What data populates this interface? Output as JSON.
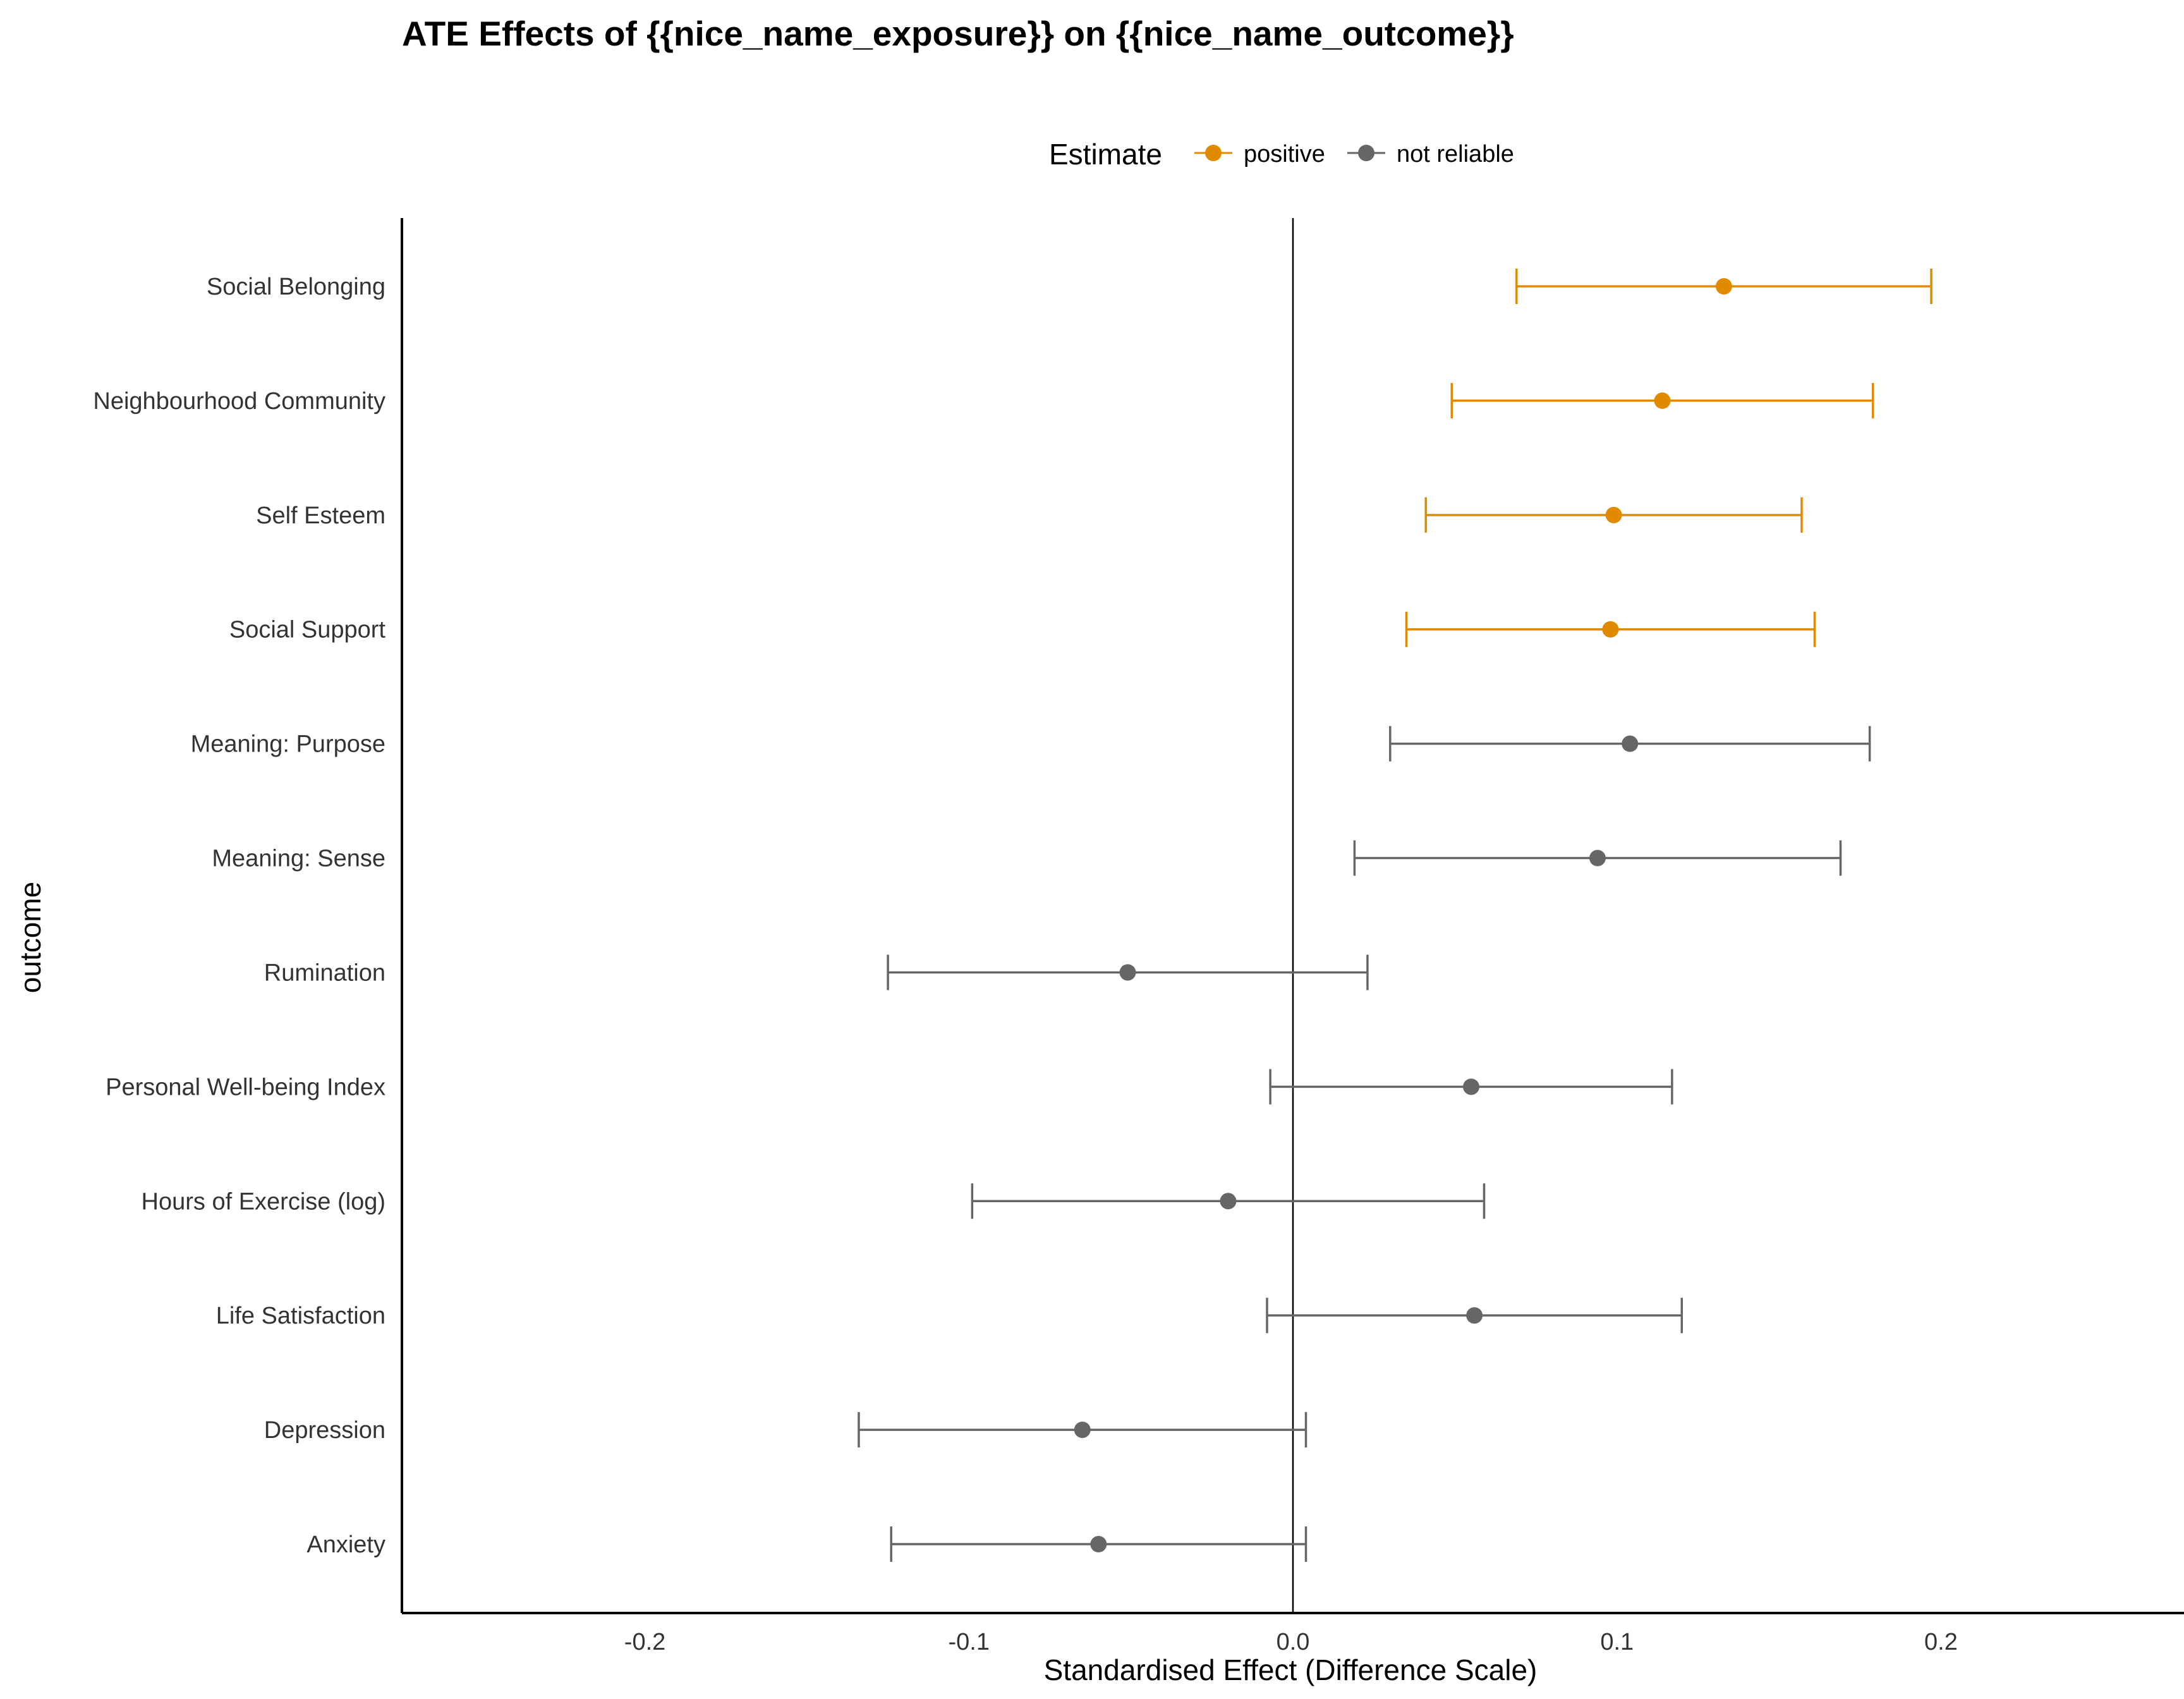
{
  "chart_data": {
    "type": "forest",
    "title": "ATE Effects of {{nice_name_exposure}} on {{nice_name_outcome}}",
    "xlabel": "Standardised Effect (Difference Scale)",
    "ylabel": "outcome",
    "xlim": [
      -0.275,
      0.275
    ],
    "xticks": [
      -0.2,
      -0.1,
      0.0,
      0.1,
      0.2
    ],
    "xtick_labels": [
      "-0.2",
      "-0.1",
      "0.0",
      "0.1",
      "0.2"
    ],
    "reference_line": 0,
    "grid": false,
    "legend": {
      "title": "Estimate",
      "placement": "top",
      "entries": [
        {
          "key": "positive",
          "label": "positive",
          "color": "#E08A00"
        },
        {
          "key": "not reliable",
          "label": "not reliable",
          "color": "#666666"
        }
      ]
    },
    "outcomes": [
      {
        "label": "Social Belonging",
        "estimate": 0.133,
        "lower": 0.069,
        "upper": 0.197,
        "category": "positive"
      },
      {
        "label": "Neighbourhood Community",
        "estimate": 0.114,
        "lower": 0.049,
        "upper": 0.179,
        "category": "positive"
      },
      {
        "label": "Self Esteem",
        "estimate": 0.099,
        "lower": 0.041,
        "upper": 0.157,
        "category": "positive"
      },
      {
        "label": "Social Support",
        "estimate": 0.098,
        "lower": 0.035,
        "upper": 0.161,
        "category": "positive"
      },
      {
        "label": "Meaning: Purpose",
        "estimate": 0.104,
        "lower": 0.03,
        "upper": 0.178,
        "category": "not reliable"
      },
      {
        "label": "Meaning: Sense",
        "estimate": 0.094,
        "lower": 0.019,
        "upper": 0.169,
        "category": "not reliable"
      },
      {
        "label": "Rumination",
        "estimate": -0.051,
        "lower": -0.125,
        "upper": 0.023,
        "category": "not reliable"
      },
      {
        "label": "Personal Well-being Index",
        "estimate": 0.055,
        "lower": -0.007,
        "upper": 0.117,
        "category": "not reliable"
      },
      {
        "label": "Hours of Exercise (log)",
        "estimate": -0.02,
        "lower": -0.099,
        "upper": 0.059,
        "category": "not reliable"
      },
      {
        "label": "Life Satisfaction",
        "estimate": 0.056,
        "lower": -0.008,
        "upper": 0.12,
        "category": "not reliable"
      },
      {
        "label": "Depression",
        "estimate": -0.065,
        "lower": -0.134,
        "upper": 0.004,
        "category": "not reliable"
      },
      {
        "label": "Anxiety",
        "estimate": -0.06,
        "lower": -0.124,
        "upper": 0.004,
        "category": "not reliable"
      }
    ]
  }
}
